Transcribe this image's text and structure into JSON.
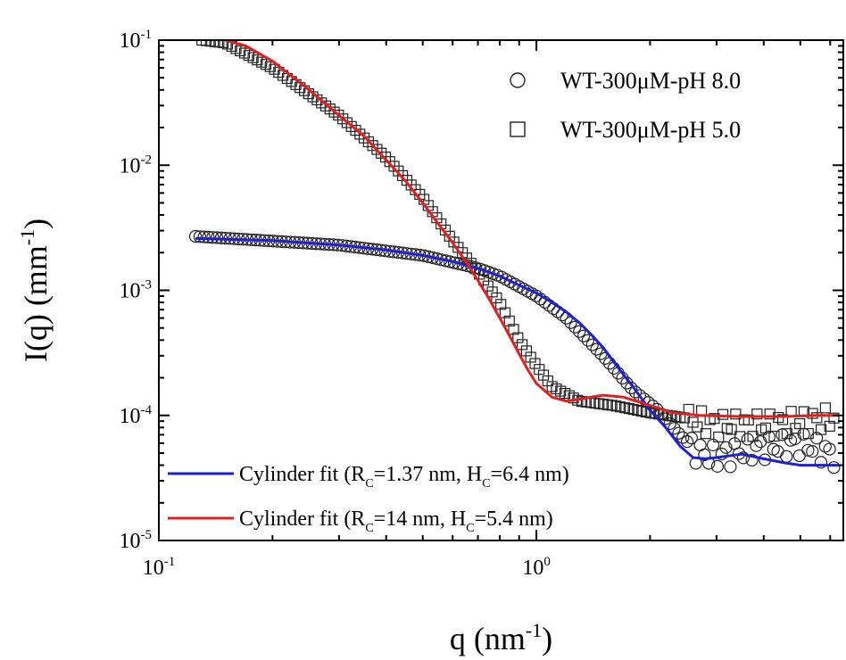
{
  "chart_data": {
    "type": "scatter",
    "xscale": "log",
    "yscale": "log",
    "xlim": [
      0.1,
      6.5
    ],
    "ylim": [
      1e-05,
      0.1
    ],
    "grid": false,
    "xlabel": {
      "text": "q (nm",
      "sup": "-1",
      "close": ")"
    },
    "ylabel": {
      "text": "I(q) (mm",
      "sup": "-1",
      "close": ")"
    },
    "xticks": [
      {
        "value": 0.1,
        "base": "10",
        "exp": "-1"
      },
      {
        "value": 1,
        "base": "10",
        "exp": "0"
      }
    ],
    "yticks": [
      {
        "value": 0.1,
        "base": "10",
        "exp": "-1"
      },
      {
        "value": 0.01,
        "base": "10",
        "exp": "-2"
      },
      {
        "value": 0.001,
        "base": "10",
        "exp": "-3"
      },
      {
        "value": 0.0001,
        "base": "10",
        "exp": "-4"
      },
      {
        "value": 1e-05,
        "base": "10",
        "exp": "-5"
      }
    ],
    "legend": {
      "position": "top-right",
      "entries": [
        {
          "marker": "circle",
          "label": "WT-300μM-pH 8.0"
        },
        {
          "marker": "square",
          "label": "WT-300μM-pH 5.0"
        }
      ]
    },
    "series": [
      {
        "name": "WT-300μM-pH 8.0",
        "kind": "markers",
        "marker": "circle",
        "points": [
          [
            0.125,
            0.0027
          ],
          [
            0.3,
            0.0023
          ],
          [
            0.5,
            0.0019
          ],
          [
            0.7,
            0.0015
          ],
          [
            0.8,
            0.0013
          ],
          [
            1.0,
            0.0009
          ],
          [
            1.2,
            0.0006
          ],
          [
            1.5,
            0.0003
          ],
          [
            1.8,
            0.00016
          ],
          [
            2.1,
            0.00011
          ],
          [
            2.4,
            7e-05
          ],
          [
            2.7,
            5e-05
          ],
          [
            3.0,
            4.7e-05
          ],
          [
            3.5,
            5.2e-05
          ],
          [
            4.0,
            5.6e-05
          ],
          [
            5.0,
            6e-05
          ],
          [
            5.5,
            5.5e-05
          ],
          [
            6.0,
            5e-05
          ],
          [
            6.3,
            4.5e-05
          ]
        ]
      },
      {
        "name": "WT-300μM-pH 5.0",
        "kind": "markers",
        "marker": "square",
        "points": [
          [
            0.13,
            0.1
          ],
          [
            0.15,
            0.095
          ],
          [
            0.2,
            0.06
          ],
          [
            0.3,
            0.025
          ],
          [
            0.4,
            0.0115
          ],
          [
            0.5,
            0.0055
          ],
          [
            0.6,
            0.0025
          ],
          [
            0.7,
            0.0014
          ],
          [
            0.8,
            0.0008
          ],
          [
            0.9,
            0.0004
          ],
          [
            1.0,
            0.00025
          ],
          [
            1.1,
            0.00017
          ],
          [
            1.3,
            0.00013
          ],
          [
            1.6,
            0.00012
          ],
          [
            2.0,
            0.000105
          ],
          [
            2.5,
            9.5e-05
          ],
          [
            3.0,
            8.5e-05
          ],
          [
            4.0,
            8.5e-05
          ],
          [
            5.0,
            9e-05
          ],
          [
            6.0,
            9.5e-05
          ],
          [
            6.3,
            0.0001
          ]
        ]
      },
      {
        "name": "Cylinder fit (R_C=1.37 nm, H_C=6.4 nm)",
        "kind": "line",
        "color": "#1f1fd6",
        "points": [
          [
            0.125,
            0.0026
          ],
          [
            0.2,
            0.0025
          ],
          [
            0.3,
            0.0023
          ],
          [
            0.4,
            0.0021
          ],
          [
            0.5,
            0.0019
          ],
          [
            0.6,
            0.0017
          ],
          [
            0.7,
            0.0015
          ],
          [
            0.8,
            0.0013
          ],
          [
            0.9,
            0.0011
          ],
          [
            1.0,
            0.00095
          ],
          [
            1.1,
            0.0008
          ],
          [
            1.2,
            0.00067
          ],
          [
            1.3,
            0.00055
          ],
          [
            1.4,
            0.00044
          ],
          [
            1.5,
            0.00035
          ],
          [
            1.6,
            0.00027
          ],
          [
            1.8,
            0.00017
          ],
          [
            2.0,
            0.00011
          ],
          [
            2.2,
            8e-05
          ],
          [
            2.4,
            5.7e-05
          ],
          [
            2.6,
            4.6e-05
          ],
          [
            2.8,
            4.5e-05
          ],
          [
            3.0,
            4.6e-05
          ],
          [
            3.5,
            4.9e-05
          ],
          [
            4.0,
            4.5e-05
          ],
          [
            4.5,
            4.2e-05
          ],
          [
            5.0,
            4e-05
          ],
          [
            6.0,
            4e-05
          ],
          [
            6.3,
            4e-05
          ]
        ]
      },
      {
        "name": "Cylinder fit (R_C=14 nm, H_C=5.4 nm)",
        "kind": "line",
        "color": "#e02020",
        "points": [
          [
            0.15,
            0.1
          ],
          [
            0.17,
            0.09
          ],
          [
            0.2,
            0.068
          ],
          [
            0.25,
            0.04
          ],
          [
            0.3,
            0.025
          ],
          [
            0.35,
            0.017
          ],
          [
            0.4,
            0.011
          ],
          [
            0.45,
            0.0075
          ],
          [
            0.5,
            0.005
          ],
          [
            0.55,
            0.0034
          ],
          [
            0.6,
            0.0024
          ],
          [
            0.65,
            0.0017
          ],
          [
            0.7,
            0.0012
          ],
          [
            0.75,
            0.00085
          ],
          [
            0.8,
            0.0006
          ],
          [
            0.85,
            0.00043
          ],
          [
            0.9,
            0.00031
          ],
          [
            0.95,
            0.00023
          ],
          [
            1.0,
            0.00018
          ],
          [
            1.1,
            0.00014
          ],
          [
            1.2,
            0.00013
          ],
          [
            1.3,
            0.000135
          ],
          [
            1.5,
            0.000145
          ],
          [
            1.7,
            0.00014
          ],
          [
            2.0,
            0.00012
          ],
          [
            2.3,
            0.000105
          ],
          [
            2.7,
            0.0001
          ],
          [
            3.5,
            9.8e-05
          ],
          [
            4.5,
            9.8e-05
          ],
          [
            5.5,
            0.0001
          ],
          [
            6.3,
            0.0001
          ]
        ]
      }
    ],
    "fit_legend": [
      {
        "color": "#1f1fd6",
        "pre": "Cylinder fit (R",
        "sub1": "C",
        "mid": "=1.37 nm, H",
        "sub2": "C",
        "post": "=6.4 nm)"
      },
      {
        "color": "#e02020",
        "pre": "Cylinder fit (R",
        "sub1": "C",
        "mid": "=14 nm, H",
        "sub2": "C",
        "post": "=5.4 nm)"
      }
    ]
  }
}
